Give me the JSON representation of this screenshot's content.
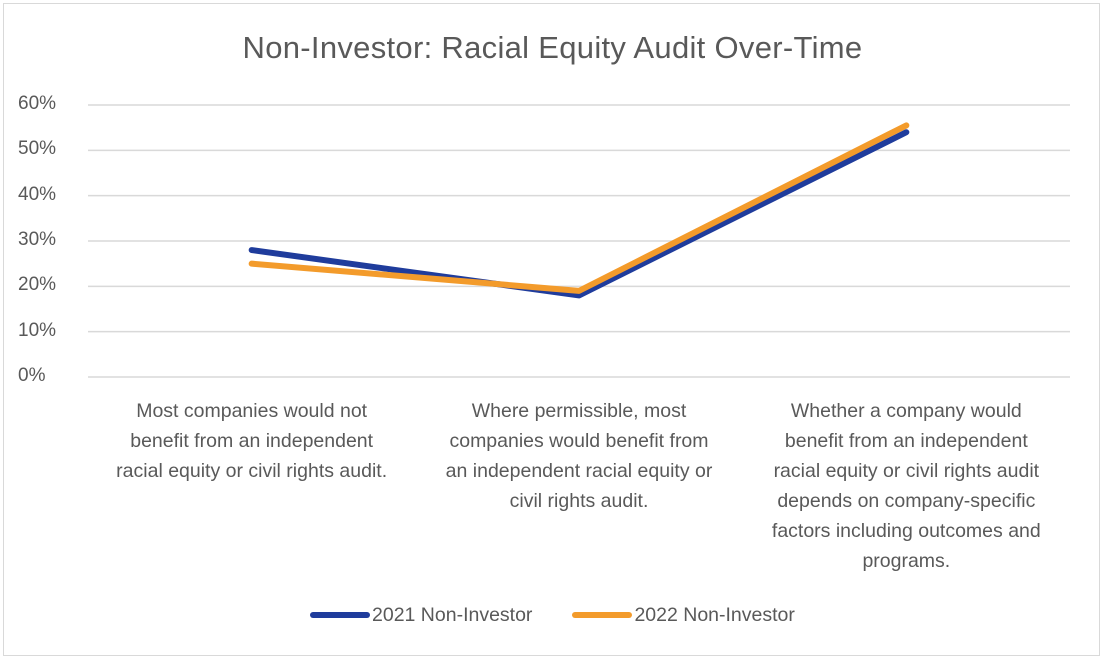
{
  "chart_data": {
    "type": "line",
    "title": "Non-Investor: Racial Equity Audit Over-Time",
    "xlabel": "",
    "ylabel": "",
    "ylim": [
      0,
      60
    ],
    "yticks": [
      "0%",
      "10%",
      "20%",
      "30%",
      "40%",
      "50%",
      "60%"
    ],
    "categories": [
      "Most companies would not benefit from an independent racial equity or civil rights audit.",
      "Where permissible, most companies would benefit from an independent racial equity or civil rights audit.",
      "Whether a company would benefit from an independent racial equity or civil rights audit depends on company-specific factors including outcomes and programs."
    ],
    "category_lines": [
      [
        "Most companies would not",
        "benefit from an independent",
        "racial equity or civil rights audit."
      ],
      [
        "Where permissible, most",
        "companies would benefit from",
        "an independent racial equity or",
        "civil rights audit."
      ],
      [
        "Whether a company would",
        "benefit from an independent",
        "racial equity or civil rights audit",
        "depends on company-specific",
        "factors including outcomes and",
        "programs."
      ]
    ],
    "series": [
      {
        "name": "2021 Non-Investor",
        "color": "#1f3c9c",
        "values": [
          28,
          18,
          54
        ]
      },
      {
        "name": "2022 Non-Investor",
        "color": "#f39b2b",
        "values": [
          25,
          19,
          55.5
        ]
      }
    ],
    "grid": true,
    "legend": "bottom"
  }
}
